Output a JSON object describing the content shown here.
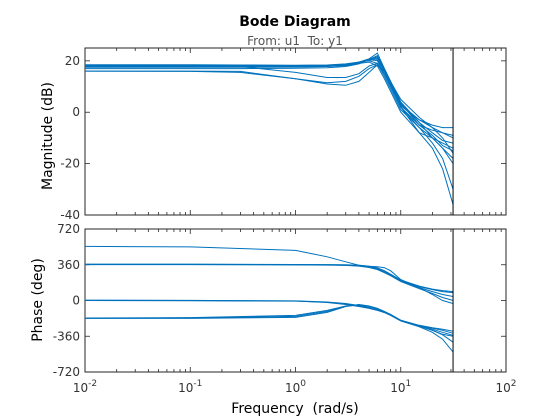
{
  "chart_data": {
    "type": "line",
    "title": "Bode Diagram",
    "subtitle": "From: u1  To: y1",
    "xlabel": "Frequency  (rad/s)",
    "xscale": "log",
    "xlim": [
      0.01,
      100
    ],
    "x_tick_labels": [
      "10-2",
      "10-1",
      "100",
      "101",
      "102"
    ],
    "nyquist_marker": 31.4,
    "line_color": "#0072bd",
    "axes_color": "#262626",
    "panels": [
      {
        "name": "magnitude",
        "ylabel": "Magnitude (dB)",
        "ylim": [
          -40,
          25
        ],
        "yticks": [
          20,
          0,
          -20,
          -40
        ],
        "ytick_labels": [
          "20",
          "0",
          "-20",
          "-40"
        ],
        "series": [
          {
            "x": [
              0.01,
              0.1,
              0.3,
              1,
              2,
              3,
              4,
              5,
              6,
              7,
              10,
              15,
              20,
              25,
              31.4
            ],
            "y": [
              18,
              18,
              18,
              18,
              18.2,
              18.5,
              19.5,
              20.5,
              20,
              15,
              2,
              -5,
              -7,
              -8,
              -9
            ]
          },
          {
            "x": [
              0.01,
              0.1,
              0.3,
              1,
              2,
              3,
              4,
              5,
              6,
              7,
              10,
              15,
              20,
              25,
              31.4
            ],
            "y": [
              17.5,
              17.5,
              17.5,
              17.6,
              17.8,
              18.2,
              19,
              20.5,
              21,
              16,
              3,
              -3,
              -6,
              -8,
              -10
            ]
          },
          {
            "x": [
              0.01,
              0.1,
              0.3,
              1,
              2,
              3,
              4,
              5,
              6,
              7,
              10,
              15,
              20,
              25,
              31.4
            ],
            "y": [
              17,
              17,
              17,
              17.1,
              17.3,
              17.8,
              18.8,
              20.5,
              22,
              17,
              4,
              -4,
              -8,
              -11,
              -12
            ]
          },
          {
            "x": [
              0.01,
              0.1,
              0.3,
              1,
              2,
              3,
              4,
              5,
              6,
              7,
              10,
              15,
              20,
              25,
              31.4
            ],
            "y": [
              18.5,
              18.5,
              18.4,
              18.3,
              18.4,
              18.8,
              19.5,
              20.8,
              23,
              17,
              2,
              -8,
              -10,
              -12,
              -14
            ]
          },
          {
            "x": [
              0.01,
              0.1,
              0.3,
              1,
              2,
              3,
              4,
              5,
              6,
              7,
              10,
              15,
              20,
              25,
              31.4
            ],
            "y": [
              17.8,
              17.8,
              17.8,
              17.8,
              18,
              18.5,
              19.5,
              20,
              19,
              14,
              1,
              -6,
              -10,
              -14,
              -18
            ]
          },
          {
            "x": [
              0.01,
              0.1,
              0.3,
              1,
              2,
              3,
              4,
              5,
              6,
              7,
              10,
              15,
              20,
              25,
              31.4
            ],
            "y": [
              18,
              18,
              17.9,
              17.8,
              17.9,
              18.2,
              19,
              19.5,
              18,
              13,
              0,
              -8,
              -14,
              -22,
              -36
            ]
          },
          {
            "x": [
              0.01,
              0.1,
              0.3,
              1,
              2,
              3,
              4,
              5,
              6,
              7,
              10,
              15,
              20,
              25,
              31.4
            ],
            "y": [
              18,
              18,
              17.8,
              15.5,
              13.5,
              13.5,
              15,
              18,
              19,
              15,
              2,
              -6,
              -12,
              -18,
              -30
            ]
          },
          {
            "x": [
              0.01,
              0.1,
              0.3,
              1,
              2,
              3,
              4,
              5,
              6,
              7,
              10,
              15,
              20,
              25,
              31.4
            ],
            "y": [
              16,
              16,
              15.9,
              13,
              11.5,
              12,
              14,
              17,
              18.5,
              15,
              3,
              -4,
              -10,
              -14,
              -20
            ]
          },
          {
            "x": [
              0.01,
              0.1,
              0.3,
              1,
              2,
              3,
              4,
              5,
              6,
              7,
              10,
              15,
              20,
              25,
              31.4
            ],
            "y": [
              16,
              15.9,
              15.5,
              13,
              11,
              10.5,
              12,
              15.5,
              18.5,
              16,
              5,
              -2,
              -6,
              -10,
              -16
            ]
          },
          {
            "x": [
              0.01,
              0.1,
              0.3,
              1,
              2,
              3,
              4,
              5,
              6,
              7,
              10,
              15,
              20,
              25,
              31.4
            ],
            "y": [
              18.2,
              18.2,
              18.2,
              18.2,
              18.3,
              18.7,
              19.4,
              20.2,
              20.5,
              16,
              2.5,
              -3,
              -5,
              -6,
              -6
            ]
          },
          {
            "x": [
              0.01,
              0.1,
              0.3,
              1,
              2,
              3,
              4,
              5,
              6,
              7,
              10,
              15,
              20,
              25,
              31.4
            ],
            "y": [
              17.6,
              17.6,
              17.6,
              17.7,
              17.9,
              18.4,
              19.2,
              20.6,
              21.5,
              16.5,
              3.5,
              -5,
              -9,
              -13,
              -15
            ]
          }
        ]
      },
      {
        "name": "phase",
        "ylabel": "Phase (deg)",
        "ylim": [
          -720,
          720
        ],
        "yticks": [
          720,
          360,
          0,
          -360,
          -720
        ],
        "ytick_labels": [
          "720",
          "360",
          "0",
          "-360",
          "-720"
        ],
        "series": [
          {
            "x": [
              0.01,
              0.1,
              1,
              2,
              3,
              4,
              5,
              6,
              7,
              8,
              10,
              15,
              20,
              25,
              31.4
            ],
            "y": [
              545,
              540,
              505,
              440,
              390,
              355,
              345,
              340,
              330,
              300,
              210,
              130,
              60,
              0,
              -30
            ]
          },
          {
            "x": [
              0.01,
              0.1,
              1,
              2,
              3,
              4,
              5,
              6,
              7,
              8,
              10,
              15,
              20,
              25,
              31.4
            ],
            "y": [
              365,
              365,
              362,
              360,
              357,
              352,
              340,
              320,
              290,
              260,
              200,
              140,
              110,
              90,
              80
            ]
          },
          {
            "x": [
              0.01,
              0.1,
              1,
              2,
              3,
              4,
              5,
              6,
              7,
              8,
              10,
              15,
              20,
              25,
              31.4
            ],
            "y": [
              363,
              363,
              360,
              358,
              355,
              348,
              335,
              315,
              285,
              255,
              195,
              130,
              90,
              60,
              40
            ]
          },
          {
            "x": [
              0.01,
              0.1,
              1,
              2,
              3,
              4,
              5,
              6,
              7,
              8,
              10,
              15,
              20,
              25,
              31.4
            ],
            "y": [
              366,
              366,
              363,
              362,
              360,
              355,
              345,
              328,
              300,
              265,
              205,
              145,
              115,
              100,
              90
            ]
          },
          {
            "x": [
              0.01,
              0.1,
              1,
              2,
              3,
              4,
              5,
              6,
              7,
              8,
              10,
              15,
              20,
              25,
              31.4
            ],
            "y": [
              362,
              362,
              358,
              356,
              353,
              346,
              332,
              312,
              280,
              250,
              190,
              120,
              70,
              30,
              0
            ]
          },
          {
            "x": [
              0.01,
              0.1,
              1,
              2,
              3,
              4,
              5,
              6,
              7,
              8,
              10,
              15,
              20,
              25,
              31.4
            ],
            "y": [
              2,
              0,
              -5,
              -20,
              -40,
              -60,
              -80,
              -100,
              -120,
              -145,
              -200,
              -255,
              -280,
              -300,
              -330
            ]
          },
          {
            "x": [
              0.01,
              0.1,
              1,
              2,
              3,
              4,
              5,
              6,
              7,
              8,
              10,
              15,
              20,
              25,
              31.4
            ],
            "y": [
              0,
              -2,
              -6,
              -18,
              -35,
              -55,
              -75,
              -98,
              -122,
              -150,
              -205,
              -260,
              -300,
              -340,
              -360
            ]
          },
          {
            "x": [
              0.01,
              0.1,
              1,
              2,
              3,
              4,
              5,
              6,
              7,
              8,
              10,
              15,
              20,
              25,
              31.4
            ],
            "y": [
              3,
              1,
              -4,
              -15,
              -30,
              -50,
              -72,
              -95,
              -118,
              -142,
              -198,
              -250,
              -275,
              -290,
              -310
            ]
          },
          {
            "x": [
              0.01,
              0.1,
              1,
              2,
              3,
              4,
              5,
              6,
              7,
              8,
              10,
              15,
              20,
              25,
              31.4
            ],
            "y": [
              -180,
              -180,
              -170,
              -120,
              -60,
              -40,
              -55,
              -80,
              -110,
              -140,
              -200,
              -255,
              -290,
              -320,
              -350
            ]
          },
          {
            "x": [
              0.01,
              0.1,
              1,
              2,
              3,
              4,
              5,
              6,
              7,
              8,
              10,
              15,
              20,
              25,
              31.4
            ],
            "y": [
              -178,
              -175,
              -160,
              -110,
              -58,
              -45,
              -60,
              -85,
              -115,
              -145,
              -205,
              -265,
              -320,
              -390,
              -520
            ]
          },
          {
            "x": [
              0.01,
              0.1,
              1,
              2,
              3,
              4,
              5,
              6,
              7,
              8,
              10,
              15,
              20,
              25,
              31.4
            ],
            "y": [
              -176,
              -172,
              -150,
              -100,
              -55,
              -42,
              -58,
              -82,
              -112,
              -142,
              -202,
              -258,
              -300,
              -345,
              -420
            ]
          }
        ]
      }
    ]
  }
}
